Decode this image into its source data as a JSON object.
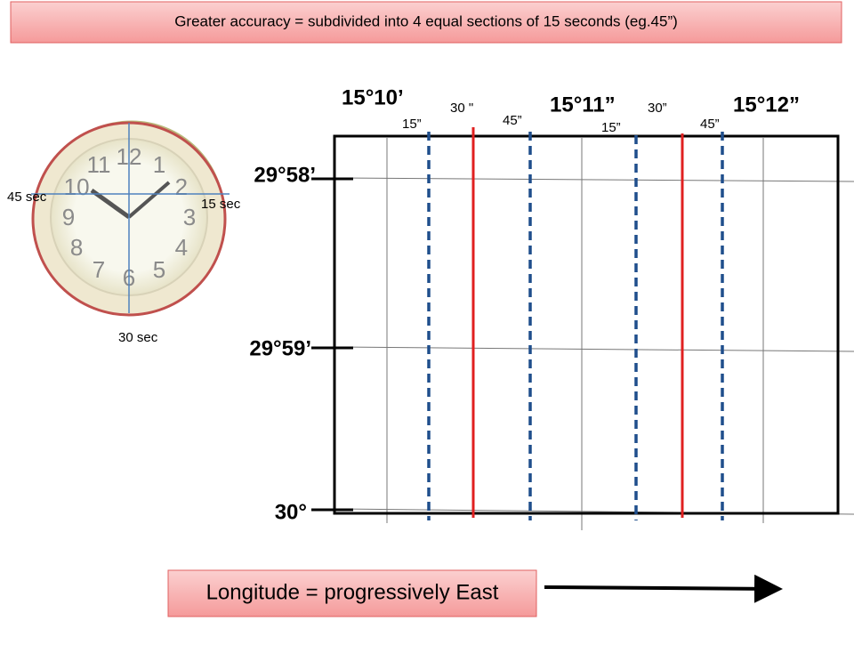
{
  "header": {
    "title": "Greater accuracy = subdivided into 4 equal sections of 15 seconds (eg.45”)"
  },
  "clock": {
    "labels": [
      "45 sec",
      "15 sec",
      "30 sec"
    ],
    "numbers": [
      "12",
      "1",
      "2",
      "3",
      "4",
      "5",
      "6",
      "7",
      "8",
      "9",
      "10",
      "11"
    ]
  },
  "longitude": {
    "labels": [
      "15°10’",
      "15°11”",
      "15°12”"
    ],
    "seconds": [
      "15”",
      "30 \"",
      "45”",
      "15”",
      "30”",
      "45”"
    ]
  },
  "latitude": {
    "labels": [
      "29°58’",
      "29°59’",
      "30°"
    ]
  },
  "caption": "Longitude = progressively East"
}
